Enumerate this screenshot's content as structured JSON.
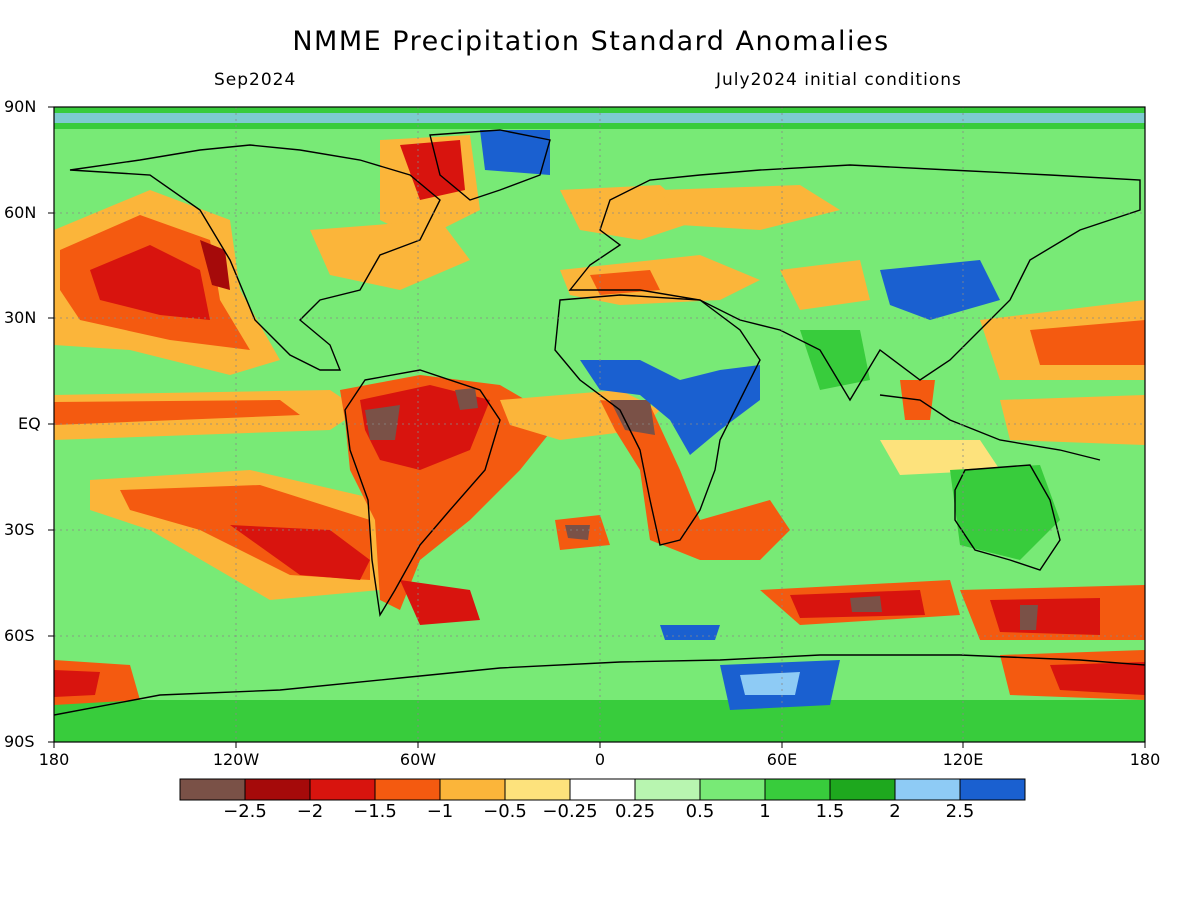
{
  "title": "NMME Precipitation Standard Anomalies",
  "subtitle_left": "Sep2024",
  "subtitle_right": "July2024 initial conditions",
  "lat_labels": [
    "90N",
    "60N",
    "30N",
    "EQ",
    "30S",
    "60S",
    "90S"
  ],
  "lon_labels": [
    "180",
    "120W",
    "60W",
    "0",
    "60E",
    "120E",
    "180"
  ],
  "colorbar": {
    "colors": [
      "#7a5147",
      "#a50a0a",
      "#d8140e",
      "#f45a10",
      "#fbb53a",
      "#fde27c",
      "#ffffff",
      "#b8f5b0",
      "#78ea76",
      "#38cc3c",
      "#1ea81e",
      "#8ecbf5",
      "#1a60d0"
    ],
    "labels": [
      "−2.5",
      "−2",
      "−1.5",
      "−1",
      "−0.5",
      "−0.25",
      "0.25",
      "0.5",
      "1",
      "1.5",
      "2",
      "2.5"
    ]
  }
}
